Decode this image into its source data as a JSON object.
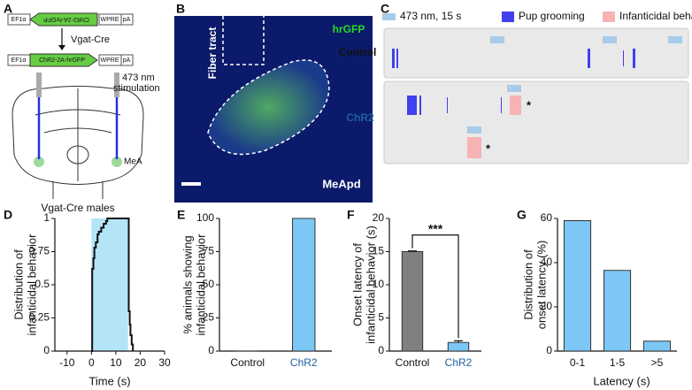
{
  "panel_labels": [
    "A",
    "B",
    "C",
    "D",
    "E",
    "F",
    "G"
  ],
  "panel_a": {
    "construct_top": [
      "EF1α",
      "ChR2-2A-hrGFP",
      "WPRE",
      "pA"
    ],
    "recombinase": "Vgat-Cre",
    "construct_bottom": [
      "EF1α",
      "ChR2-2A-hrGFP",
      "WPRE",
      "pA"
    ],
    "stimulation": [
      "473 nm",
      "stimulation"
    ],
    "region": "MeA",
    "caption": "Vgat-Cre males"
  },
  "panel_b": {
    "marker": "hrGFP",
    "fiber": "Fiber tract",
    "region": "MeApd"
  },
  "panel_c": {
    "legend": [
      "473 nm, 15 s",
      "Pup grooming",
      "Infanticidal behavior"
    ],
    "rows": [
      "Control",
      "ChR2"
    ]
  },
  "chart_data": [
    {
      "type": "step",
      "ylabel": [
        "Distribution of",
        "infanticidal behavior"
      ],
      "xlabel": "Time (s)",
      "x": [
        0,
        0.3,
        0.8,
        1.2,
        1.8,
        2.5,
        3,
        4,
        5,
        6,
        6.5,
        15,
        15.3,
        15.7,
        16,
        16.5,
        17
      ],
      "values": [
        0,
        0.62,
        0.7,
        0.78,
        0.82,
        0.88,
        0.9,
        0.93,
        0.96,
        0.98,
        1,
        1,
        0.3,
        0.2,
        0.12,
        0.05,
        0
      ],
      "color": "#111111",
      "shade": [
        0,
        15
      ],
      "shade_color": "#b3e5f7",
      "xlim": [
        -15,
        30
      ],
      "xticks": [
        -10,
        0,
        10,
        20,
        30
      ],
      "ylim": [
        0,
        1
      ],
      "yticks": [
        0,
        0.25,
        0.5,
        0.75,
        1
      ]
    },
    {
      "type": "bar",
      "ylabel": [
        "% animals showing",
        "infanticidal behavior"
      ],
      "categories": [
        "Control",
        "ChR2"
      ],
      "values": [
        0,
        100
      ],
      "colors": [
        "#7cc7f5",
        "#7cc7f5"
      ],
      "label_colors": [
        "#111111",
        "#1f5fa0"
      ],
      "ylim": [
        0,
        100
      ],
      "yticks": [
        0,
        25,
        50,
        75,
        100
      ]
    },
    {
      "type": "bar",
      "ylabel": [
        "Onset latency of",
        "infanticidal behavior (s)"
      ],
      "categories": [
        "Control",
        "ChR2"
      ],
      "values": [
        15,
        1.3
      ],
      "errors": [
        0.1,
        0.25
      ],
      "colors": [
        "#808080",
        "#7cc7f5"
      ],
      "label_colors": [
        "#111111",
        "#1f5fa0"
      ],
      "annotation": "***",
      "ylim": [
        0,
        20
      ],
      "yticks": [
        0,
        5,
        10,
        15,
        20
      ]
    },
    {
      "type": "bar",
      "ylabel": [
        "Distribution of",
        "onset latency (%)"
      ],
      "xlabel": "Latency (s)",
      "categories": [
        "0-1",
        "1-5",
        ">5"
      ],
      "values": [
        59,
        36.5,
        4.5
      ],
      "colors": [
        "#7cc7f5",
        "#7cc7f5",
        "#7cc7f5"
      ],
      "ylim": [
        0,
        60
      ],
      "yticks": [
        0,
        20,
        40,
        60
      ]
    }
  ]
}
